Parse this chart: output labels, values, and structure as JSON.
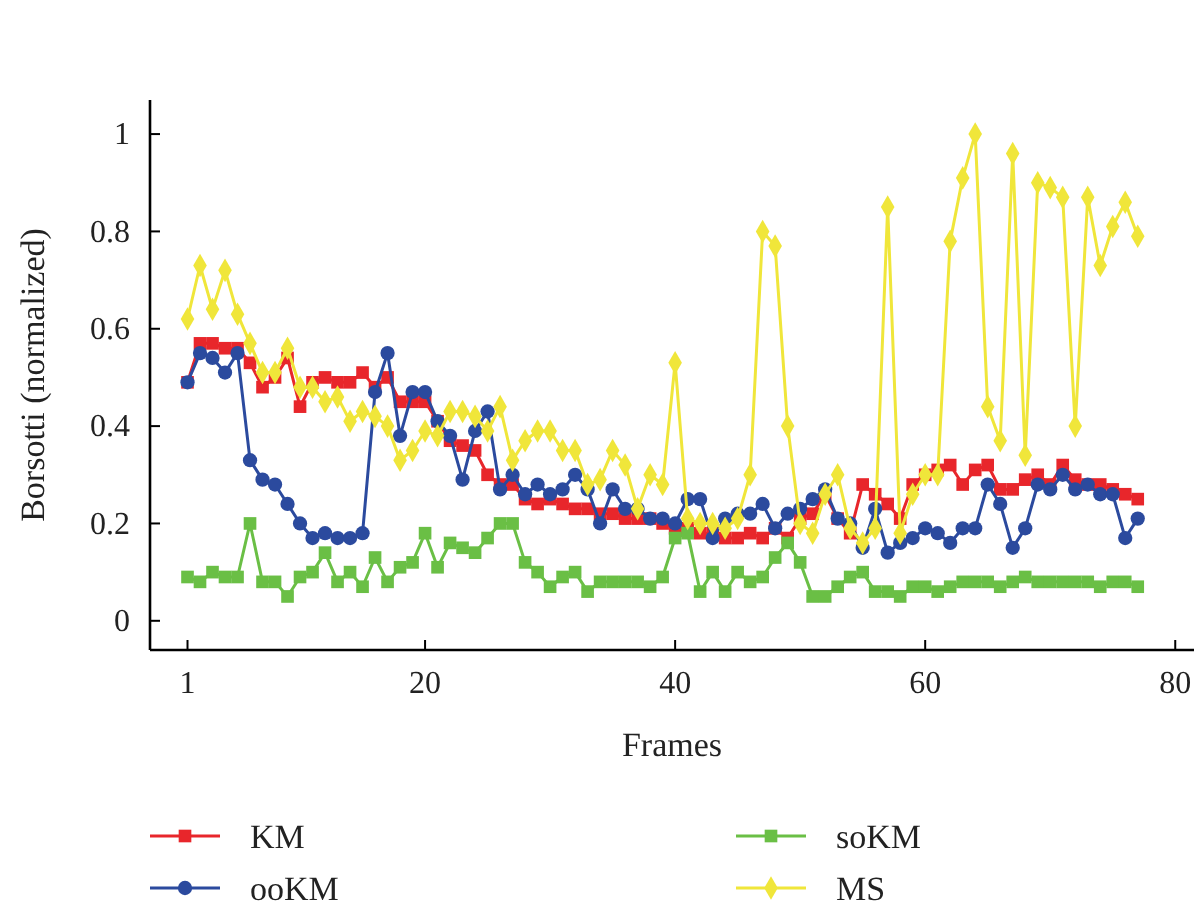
{
  "chart_data": {
    "type": "line",
    "xlabel": "Frames",
    "ylabel": "Borsotti (normalized)",
    "x": [
      1,
      2,
      3,
      4,
      5,
      6,
      7,
      8,
      9,
      10,
      11,
      12,
      13,
      14,
      15,
      16,
      17,
      18,
      19,
      20,
      21,
      22,
      23,
      24,
      25,
      26,
      27,
      28,
      29,
      30,
      31,
      32,
      33,
      34,
      35,
      36,
      37,
      38,
      39,
      40,
      41,
      42,
      43,
      44,
      45,
      46,
      47,
      48,
      49,
      50,
      51,
      52,
      53,
      54,
      55,
      56,
      57,
      58,
      59,
      60,
      61,
      62,
      63,
      64,
      65,
      66,
      67,
      68,
      69,
      70,
      71,
      72,
      73,
      74,
      75,
      76,
      77
    ],
    "xlim": [
      -2,
      81.5
    ],
    "xticks": [
      1,
      20,
      40,
      60,
      80
    ],
    "ylim": [
      -0.06,
      1.07
    ],
    "yticks": [
      0,
      0.2,
      0.4,
      0.6,
      0.8,
      1
    ],
    "grid": false,
    "legend": "bottom",
    "line_style": "solid",
    "series": [
      {
        "name": "KM",
        "color": "#e8262b",
        "marker": "square",
        "values": [
          0.49,
          0.57,
          0.57,
          0.56,
          0.56,
          0.53,
          0.48,
          0.5,
          0.54,
          0.44,
          0.49,
          0.5,
          0.49,
          0.49,
          0.51,
          0.48,
          0.5,
          0.45,
          0.45,
          0.45,
          0.41,
          0.37,
          0.36,
          0.35,
          0.3,
          0.28,
          0.28,
          0.25,
          0.24,
          0.25,
          0.24,
          0.23,
          0.23,
          0.22,
          0.22,
          0.21,
          0.21,
          0.21,
          0.2,
          0.19,
          0.19,
          0.18,
          0.18,
          0.17,
          0.17,
          0.18,
          0.17,
          0.19,
          0.17,
          0.21,
          0.22,
          0.26,
          0.21,
          0.18,
          0.28,
          0.26,
          0.24,
          0.21,
          0.28,
          0.3,
          0.31,
          0.32,
          0.28,
          0.31,
          0.32,
          0.27,
          0.27,
          0.29,
          0.3,
          0.28,
          0.32,
          0.29,
          0.28,
          0.28,
          0.27,
          0.26,
          0.25
        ]
      },
      {
        "name": "ooKM",
        "color": "#2b4a9e",
        "marker": "circle",
        "values": [
          0.49,
          0.55,
          0.54,
          0.51,
          0.55,
          0.33,
          0.29,
          0.28,
          0.24,
          0.2,
          0.17,
          0.18,
          0.17,
          0.17,
          0.18,
          0.47,
          0.55,
          0.38,
          0.47,
          0.47,
          0.41,
          0.38,
          0.29,
          0.39,
          0.43,
          0.27,
          0.3,
          0.26,
          0.28,
          0.26,
          0.27,
          0.3,
          0.27,
          0.2,
          0.27,
          0.23,
          0.23,
          0.21,
          0.21,
          0.2,
          0.25,
          0.25,
          0.17,
          0.21,
          0.22,
          0.22,
          0.24,
          0.19,
          0.22,
          0.23,
          0.25,
          0.27,
          0.21,
          0.2,
          0.15,
          0.23,
          0.14,
          0.16,
          0.17,
          0.19,
          0.18,
          0.16,
          0.19,
          0.19,
          0.28,
          0.24,
          0.15,
          0.19,
          0.28,
          0.27,
          0.3,
          0.27,
          0.28,
          0.26,
          0.26,
          0.17,
          0.21
        ]
      },
      {
        "name": "soKM",
        "color": "#6abf45",
        "marker": "square",
        "values": [
          0.09,
          0.08,
          0.1,
          0.09,
          0.09,
          0.2,
          0.08,
          0.08,
          0.05,
          0.09,
          0.1,
          0.14,
          0.08,
          0.1,
          0.07,
          0.13,
          0.08,
          0.11,
          0.12,
          0.18,
          0.11,
          0.16,
          0.15,
          0.14,
          0.17,
          0.2,
          0.2,
          0.12,
          0.1,
          0.07,
          0.09,
          0.1,
          0.06,
          0.08,
          0.08,
          0.08,
          0.08,
          0.07,
          0.09,
          0.17,
          0.18,
          0.06,
          0.1,
          0.06,
          0.1,
          0.08,
          0.09,
          0.13,
          0.16,
          0.12,
          0.05,
          0.05,
          0.07,
          0.09,
          0.1,
          0.06,
          0.06,
          0.05,
          0.07,
          0.07,
          0.06,
          0.07,
          0.08,
          0.08,
          0.08,
          0.07,
          0.08,
          0.09,
          0.08,
          0.08,
          0.08,
          0.08,
          0.08,
          0.07,
          0.08,
          0.08,
          0.07
        ]
      },
      {
        "name": "MS",
        "color": "#f0e63a",
        "marker": "diamond",
        "values": [
          0.62,
          0.73,
          0.64,
          0.72,
          0.63,
          0.57,
          0.51,
          0.51,
          0.56,
          0.48,
          0.48,
          0.45,
          0.46,
          0.41,
          0.43,
          0.42,
          0.4,
          0.33,
          0.35,
          0.39,
          0.38,
          0.43,
          0.43,
          0.42,
          0.39,
          0.44,
          0.33,
          0.37,
          0.39,
          0.39,
          0.35,
          0.35,
          0.28,
          0.29,
          0.35,
          0.32,
          0.23,
          0.3,
          0.28,
          0.53,
          0.21,
          0.2,
          0.2,
          0.19,
          0.21,
          0.3,
          0.8,
          0.77,
          0.4,
          0.2,
          0.18,
          0.26,
          0.3,
          0.19,
          0.16,
          0.19,
          0.85,
          0.18,
          0.26,
          0.3,
          0.3,
          0.78,
          0.91,
          1.0,
          0.44,
          0.37,
          0.96,
          0.34,
          0.9,
          0.89,
          0.87,
          0.4,
          0.87,
          0.73,
          0.81,
          0.86,
          0.79
        ]
      }
    ]
  }
}
